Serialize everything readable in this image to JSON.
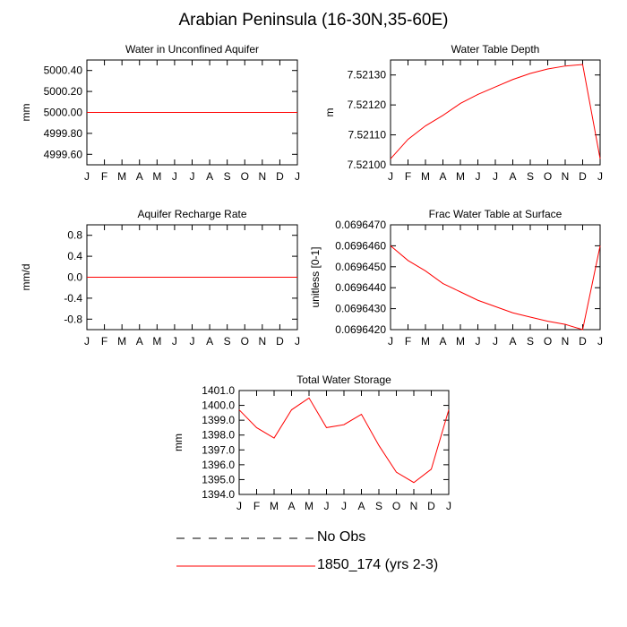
{
  "page": {
    "title": "Arabian Peninsula (16-30N,35-60E)"
  },
  "colors": {
    "series": "#ff0000",
    "axis": "#000000",
    "obs": "#000000"
  },
  "chart_data": [
    {
      "id": "water_unconfined",
      "type": "line",
      "title": "Water in Unconfined Aquifer",
      "ylabel": "mm",
      "xlabel": "",
      "categories": [
        "J",
        "F",
        "M",
        "A",
        "M",
        "J",
        "J",
        "A",
        "S",
        "O",
        "N",
        "D",
        "J"
      ],
      "ylim": [
        4999.5,
        5000.5
      ],
      "yticks": [
        4999.6,
        4999.8,
        5000.0,
        5000.2,
        5000.4
      ],
      "ytick_labels": [
        "4999.60",
        "4999.80",
        "5000.00",
        "5000.20",
        "5000.40"
      ],
      "series": [
        {
          "values": [
            5000,
            5000,
            5000,
            5000,
            5000,
            5000,
            5000,
            5000,
            5000,
            5000,
            5000,
            5000,
            5000
          ]
        }
      ]
    },
    {
      "id": "water_table_depth",
      "type": "line",
      "title": "Water Table Depth",
      "ylabel": "m",
      "xlabel": "",
      "categories": [
        "J",
        "F",
        "M",
        "A",
        "M",
        "J",
        "J",
        "A",
        "S",
        "O",
        "N",
        "D",
        "J"
      ],
      "ylim": [
        7.521,
        7.52135
      ],
      "yticks": [
        7.521,
        7.5211,
        7.5212,
        7.5213
      ],
      "ytick_labels": [
        "7.52100",
        "7.52110",
        "7.52120",
        "7.52130"
      ],
      "series": [
        {
          "values": [
            7.52102,
            7.521085,
            7.52113,
            7.521165,
            7.521205,
            7.521235,
            7.52126,
            7.521285,
            7.521305,
            7.52132,
            7.52133,
            7.521335,
            7.52102
          ]
        }
      ]
    },
    {
      "id": "aquifer_recharge",
      "type": "line",
      "title": "Aquifer Recharge Rate",
      "ylabel": "mm/d",
      "xlabel": "",
      "categories": [
        "J",
        "F",
        "M",
        "A",
        "M",
        "J",
        "J",
        "A",
        "S",
        "O",
        "N",
        "D",
        "J"
      ],
      "ylim": [
        -1.0,
        1.0
      ],
      "yticks": [
        -0.8,
        -0.4,
        0.0,
        0.4,
        0.8
      ],
      "ytick_labels": [
        "-0.8",
        "-0.4",
        "0.0",
        "0.4",
        "0.8"
      ],
      "series": [
        {
          "values": [
            0,
            0,
            0,
            0,
            0,
            0,
            0,
            0,
            0,
            0,
            0,
            0,
            0
          ]
        }
      ]
    },
    {
      "id": "frac_water_table",
      "type": "line",
      "title": "Frac Water Table at Surface",
      "ylabel": "unitless [0-1]",
      "xlabel": "",
      "categories": [
        "J",
        "F",
        "M",
        "A",
        "M",
        "J",
        "J",
        "A",
        "S",
        "O",
        "N",
        "D",
        "J"
      ],
      "ylim": [
        0.069642,
        0.069647
      ],
      "yticks": [
        0.069642,
        0.069643,
        0.069644,
        0.069645,
        0.069646,
        0.069647
      ],
      "ytick_labels": [
        "0.0696420",
        "0.0696430",
        "0.0696440",
        "0.0696450",
        "0.0696460",
        "0.0696470"
      ],
      "series": [
        {
          "values": [
            0.069646,
            0.0696453,
            0.0696448,
            0.0696442,
            0.0696438,
            0.0696434,
            0.0696431,
            0.0696428,
            0.0696426,
            0.0696424,
            0.06964225,
            0.069642,
            0.069646
          ]
        }
      ]
    },
    {
      "id": "total_water_storage",
      "type": "line",
      "title": "Total Water Storage",
      "ylabel": "mm",
      "xlabel": "",
      "categories": [
        "J",
        "F",
        "M",
        "A",
        "M",
        "J",
        "J",
        "A",
        "S",
        "O",
        "N",
        "D",
        "J"
      ],
      "ylim": [
        1394.0,
        1401.0
      ],
      "yticks": [
        1394.0,
        1395.0,
        1396.0,
        1397.0,
        1398.0,
        1399.0,
        1400.0,
        1401.0
      ],
      "ytick_labels": [
        "1394.0",
        "1395.0",
        "1396.0",
        "1397.0",
        "1398.0",
        "1399.0",
        "1400.0",
        "1401.0"
      ],
      "series": [
        {
          "values": [
            1399.7,
            1398.5,
            1397.8,
            1399.7,
            1400.5,
            1398.5,
            1398.7,
            1399.4,
            1397.3,
            1395.5,
            1394.8,
            1395.7,
            1399.7
          ]
        }
      ]
    }
  ],
  "legend": {
    "entries": [
      {
        "label": "No Obs",
        "style": "dashed",
        "color": "#000000"
      },
      {
        "label": "1850_174 (yrs 2-3)",
        "style": "solid",
        "color": "#ff0000"
      }
    ]
  }
}
